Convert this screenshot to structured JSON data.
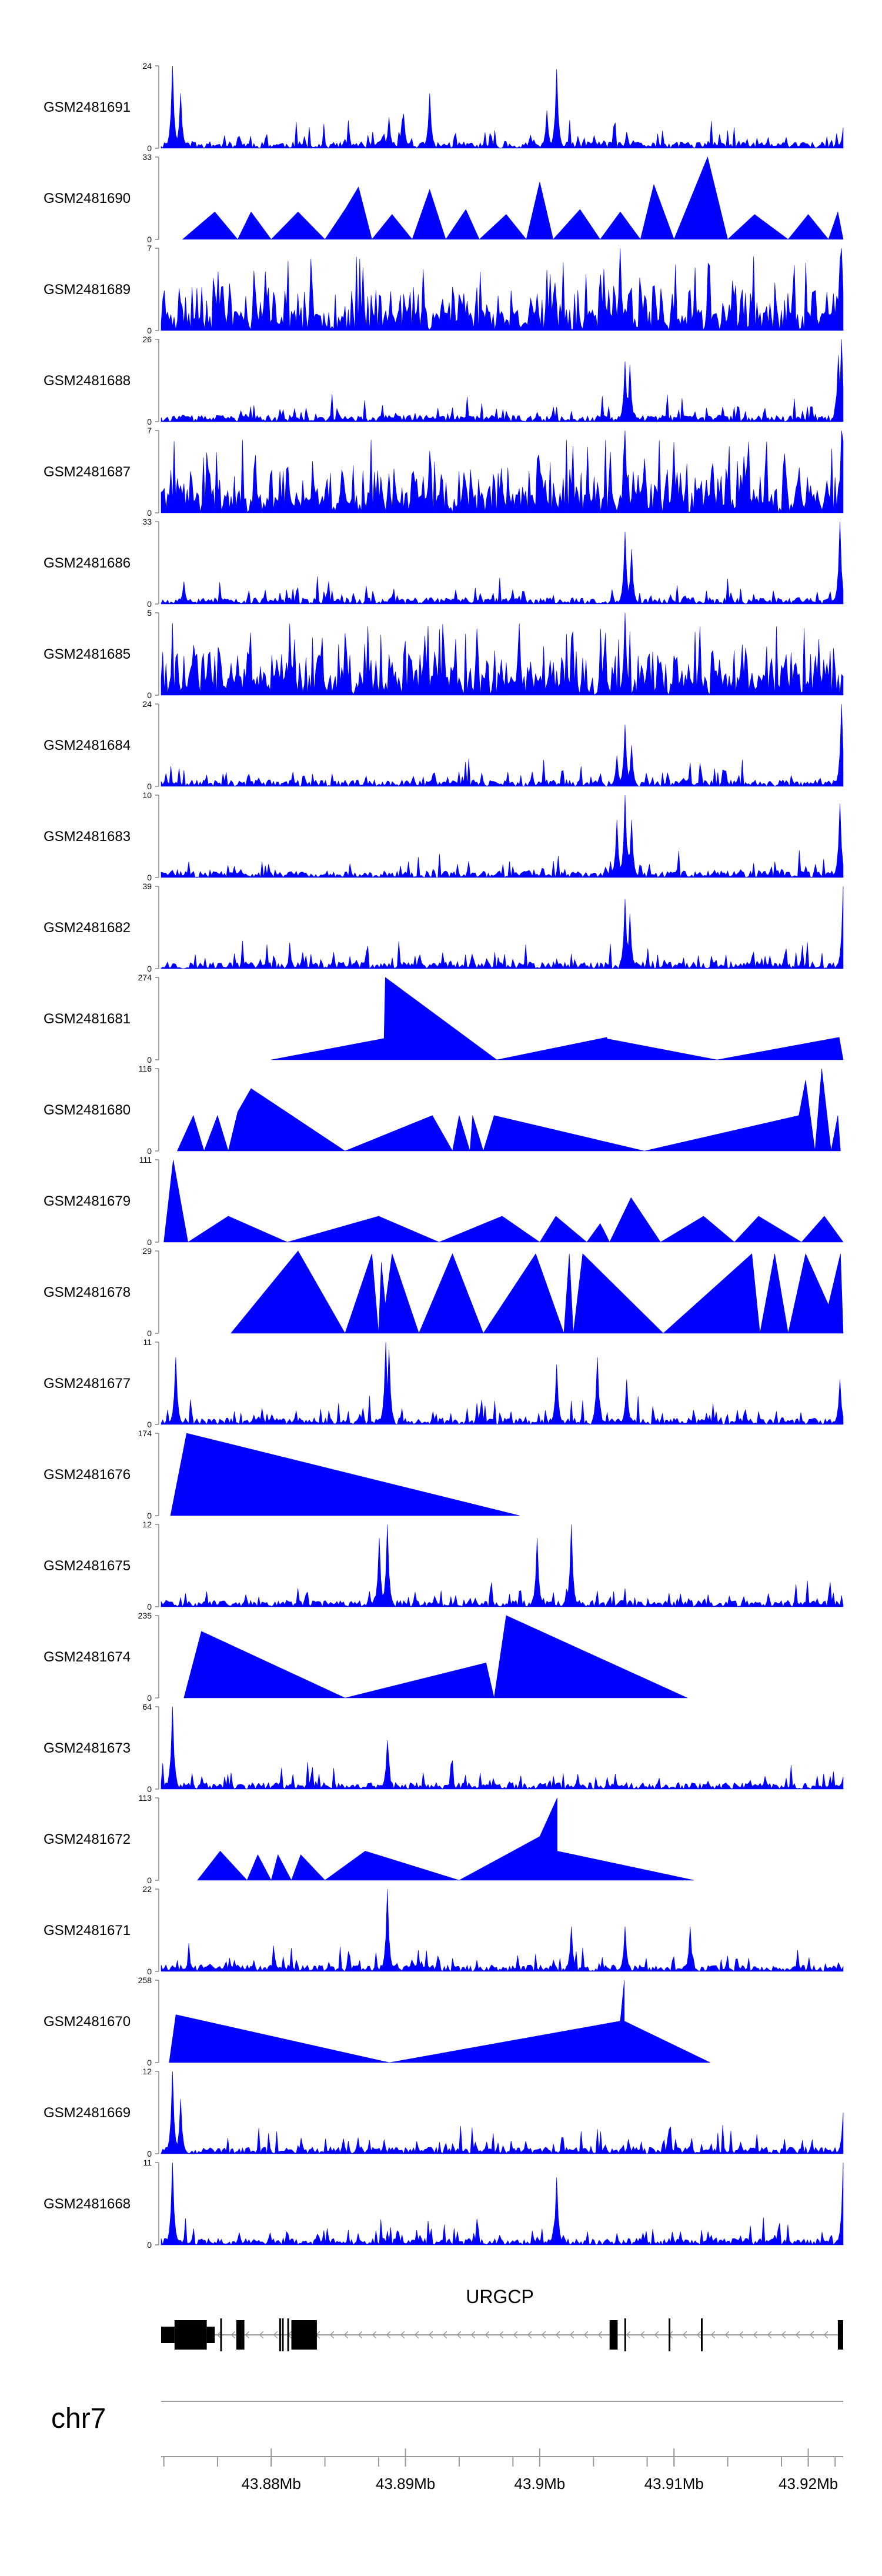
{
  "chart_data": {
    "type": "area",
    "title": "",
    "color": "#0000ff",
    "chromosome": "chr7",
    "gene": "URGCP",
    "axis": {
      "start": 43.8718,
      "end": 43.9226,
      "tick_labels": [
        "43.88Mb",
        "43.89Mb",
        "43.9Mb",
        "43.91Mb",
        "43.92Mb"
      ],
      "tick_label_values": [
        43.88,
        43.89,
        43.9,
        43.91,
        43.92
      ],
      "minor_ticks": [
        43.872,
        43.876,
        43.88,
        43.884,
        43.888,
        43.89,
        43.894,
        43.898,
        43.9,
        43.904,
        43.908,
        43.91,
        43.914,
        43.918,
        43.92,
        43.922
      ]
    },
    "tracks": [
      {
        "name": "GSM2481691",
        "ymax": "24",
        "max": 24,
        "kind": "dense",
        "seed": 11,
        "peaks": [
          [
            43.8727,
            24
          ],
          [
            43.8732,
            16
          ],
          [
            43.8888,
            9
          ],
          [
            43.8899,
            10
          ],
          [
            43.8898,
            8
          ],
          [
            43.8918,
            16
          ],
          [
            43.9005,
            11
          ],
          [
            43.9013,
            23
          ],
          [
            43.9013,
            14
          ],
          [
            43.9226,
            6
          ]
        ]
      },
      {
        "name": "GSM2481690",
        "ymax": "33",
        "max": 33,
        "kind": "tri",
        "pts": [
          [
            43.8734,
            0
          ],
          [
            43.8758,
            11
          ],
          [
            43.8775,
            0
          ],
          [
            43.8785,
            11
          ],
          [
            43.88,
            0
          ],
          [
            43.882,
            11
          ],
          [
            43.884,
            0
          ],
          [
            43.8855,
            12
          ],
          [
            43.8865,
            21
          ],
          [
            43.8875,
            0
          ],
          [
            43.889,
            10
          ],
          [
            43.8905,
            0
          ],
          [
            43.8918,
            20
          ],
          [
            43.893,
            0
          ],
          [
            43.8945,
            12
          ],
          [
            43.8955,
            0
          ],
          [
            43.8975,
            10
          ],
          [
            43.899,
            0
          ],
          [
            43.9,
            23
          ],
          [
            43.901,
            0
          ],
          [
            43.903,
            12
          ],
          [
            43.9045,
            0
          ],
          [
            43.906,
            11
          ],
          [
            43.9075,
            0
          ],
          [
            43.9085,
            22
          ],
          [
            43.91,
            0
          ],
          [
            43.9125,
            33
          ],
          [
            43.914,
            0
          ],
          [
            43.916,
            10
          ],
          [
            43.9185,
            0
          ],
          [
            43.92,
            10
          ],
          [
            43.9215,
            0
          ],
          [
            43.9222,
            11
          ],
          [
            43.9226,
            0
          ]
        ]
      },
      {
        "name": "GSM2481689",
        "ymax": "7",
        "max": 7,
        "kind": "spiky",
        "seed": 23,
        "peaks": [
          [
            43.876,
            5
          ],
          [
            43.8795,
            5
          ],
          [
            43.906,
            7
          ],
          [
            43.9225,
            7
          ]
        ]
      },
      {
        "name": "GSM2481688",
        "ymax": "26",
        "max": 26,
        "kind": "dense",
        "seed": 37,
        "peaks": [
          [
            43.9063,
            19
          ],
          [
            43.9067,
            18
          ],
          [
            43.9222,
            21
          ],
          [
            43.9225,
            26
          ]
        ]
      },
      {
        "name": "GSM2481687",
        "ymax": "7",
        "max": 7,
        "kind": "spiky",
        "seed": 41,
        "peaks": [
          [
            43.9063,
            7
          ],
          [
            43.9225,
            7
          ]
        ]
      },
      {
        "name": "GSM2481686",
        "ymax": "33",
        "max": 33,
        "kind": "dense",
        "seed": 53,
        "peaks": [
          [
            43.8735,
            9
          ],
          [
            43.9063,
            29
          ],
          [
            43.9068,
            22
          ],
          [
            43.9224,
            33
          ]
        ]
      },
      {
        "name": "GSM2481685",
        "ymax": "5",
        "max": 5,
        "kind": "spiky",
        "seed": 61,
        "peaks": [
          [
            43.9063,
            5
          ]
        ]
      },
      {
        "name": "GSM2481684",
        "ymax": "24",
        "max": 24,
        "kind": "dense",
        "seed": 71,
        "peaks": [
          [
            43.9063,
            18
          ],
          [
            43.9068,
            12
          ],
          [
            43.9058,
            9
          ],
          [
            43.9225,
            24
          ]
        ]
      },
      {
        "name": "GSM2481683",
        "ymax": "10",
        "max": 10,
        "kind": "dense",
        "seed": 83,
        "peaks": [
          [
            43.9063,
            10
          ],
          [
            43.9058,
            7
          ],
          [
            43.9068,
            7
          ],
          [
            43.9224,
            9
          ]
        ]
      },
      {
        "name": "GSM2481682",
        "ymax": "39",
        "max": 39,
        "kind": "dense",
        "seed": 97,
        "peaks": [
          [
            43.9063,
            33
          ],
          [
            43.9067,
            26
          ],
          [
            43.9226,
            39
          ]
        ]
      },
      {
        "name": "GSM2481681",
        "ymax": "274",
        "max": 274,
        "kind": "tri",
        "pts": [
          [
            43.88,
            0
          ],
          [
            43.8884,
            71
          ],
          [
            43.8885,
            274
          ],
          [
            43.8968,
            0
          ],
          [
            43.905,
            75
          ],
          [
            43.905,
            70
          ],
          [
            43.9132,
            0
          ],
          [
            43.9223,
            75
          ],
          [
            43.9226,
            0
          ]
        ]
      },
      {
        "name": "GSM2481680",
        "ymax": "116",
        "max": 116,
        "kind": "tri",
        "pts": [
          [
            43.873,
            0
          ],
          [
            43.8742,
            50
          ],
          [
            43.875,
            0
          ],
          [
            43.876,
            50
          ],
          [
            43.8768,
            0
          ],
          [
            43.8775,
            55
          ],
          [
            43.8785,
            88
          ],
          [
            43.8855,
            0
          ],
          [
            43.892,
            50
          ],
          [
            43.8935,
            0
          ],
          [
            43.894,
            50
          ],
          [
            43.8948,
            0
          ],
          [
            43.895,
            50
          ],
          [
            43.8958,
            0
          ],
          [
            43.8966,
            50
          ],
          [
            43.9078,
            0
          ],
          [
            43.9193,
            50
          ],
          [
            43.9198,
            100
          ],
          [
            43.9205,
            0
          ],
          [
            43.921,
            116
          ],
          [
            43.9217,
            0
          ],
          [
            43.9222,
            50
          ],
          [
            43.9224,
            0
          ]
        ]
      },
      {
        "name": "GSM2481679",
        "ymax": "111",
        "max": 111,
        "kind": "tri",
        "pts": [
          [
            43.872,
            0
          ],
          [
            43.8727,
            111
          ],
          [
            43.8738,
            0
          ],
          [
            43.8768,
            35
          ],
          [
            43.8812,
            0
          ],
          [
            43.888,
            35
          ],
          [
            43.8925,
            0
          ],
          [
            43.8972,
            35
          ],
          [
            43.9,
            0
          ],
          [
            43.9012,
            35
          ],
          [
            43.9035,
            0
          ],
          [
            43.9045,
            25
          ],
          [
            43.9048,
            15
          ],
          [
            43.9052,
            0
          ],
          [
            43.9068,
            60
          ],
          [
            43.909,
            0
          ],
          [
            43.9122,
            35
          ],
          [
            43.9145,
            0
          ],
          [
            43.9163,
            35
          ],
          [
            43.9195,
            0
          ],
          [
            43.9212,
            35
          ],
          [
            43.9226,
            0
          ]
        ]
      },
      {
        "name": "GSM2481678",
        "ymax": "29",
        "max": 29,
        "kind": "tri",
        "pts": [
          [
            43.877,
            0
          ],
          [
            43.882,
            29
          ],
          [
            43.8855,
            0
          ],
          [
            43.8875,
            28
          ],
          [
            43.888,
            0
          ],
          [
            43.8882,
            25
          ],
          [
            43.8885,
            10
          ],
          [
            43.889,
            28
          ],
          [
            43.891,
            0
          ],
          [
            43.8935,
            28
          ],
          [
            43.8958,
            0
          ],
          [
            43.8997,
            28
          ],
          [
            43.9018,
            0
          ],
          [
            43.9022,
            28
          ],
          [
            43.9025,
            0
          ],
          [
            43.9032,
            28
          ],
          [
            43.9092,
            0
          ],
          [
            43.9158,
            28
          ],
          [
            43.9164,
            0
          ],
          [
            43.9175,
            28
          ],
          [
            43.9185,
            0
          ],
          [
            43.9198,
            28
          ],
          [
            43.9215,
            10
          ],
          [
            43.9224,
            28
          ],
          [
            43.9226,
            0
          ]
        ]
      },
      {
        "name": "GSM2481677",
        "ymax": "11",
        "max": 11,
        "kind": "dense",
        "seed": 109,
        "peaks": [
          [
            43.8729,
            9
          ],
          [
            43.8885,
            11
          ],
          [
            43.8888,
            10
          ],
          [
            43.9013,
            8
          ],
          [
            43.9043,
            9
          ],
          [
            43.9065,
            6
          ],
          [
            43.9224,
            6
          ]
        ]
      },
      {
        "name": "GSM2481676",
        "ymax": "174",
        "max": 174,
        "kind": "tri",
        "pts": [
          [
            43.8725,
            0
          ],
          [
            43.8737,
            174
          ],
          [
            43.8985,
            0
          ]
        ]
      },
      {
        "name": "GSM2481675",
        "ymax": "12",
        "max": 12,
        "kind": "dense",
        "seed": 127,
        "peaks": [
          [
            43.888,
            10
          ],
          [
            43.8886,
            12
          ],
          [
            43.8998,
            10
          ],
          [
            43.9023,
            12
          ]
        ]
      },
      {
        "name": "GSM2481674",
        "ymax": "235",
        "max": 235,
        "kind": "tri",
        "pts": [
          [
            43.8735,
            0
          ],
          [
            43.8748,
            190
          ],
          [
            43.8855,
            0
          ],
          [
            43.896,
            100
          ],
          [
            43.8966,
            0
          ],
          [
            43.8975,
            235
          ],
          [
            43.911,
            0
          ]
        ]
      },
      {
        "name": "GSM2481673",
        "ymax": "64",
        "max": 64,
        "kind": "dense",
        "seed": 139,
        "peaks": [
          [
            43.8727,
            64
          ],
          [
            43.8886,
            38
          ],
          [
            43.9226,
            8
          ]
        ]
      },
      {
        "name": "GSM2481672",
        "ymax": "113",
        "max": 113,
        "kind": "tri",
        "pts": [
          [
            43.8745,
            0
          ],
          [
            43.8762,
            40
          ],
          [
            43.8782,
            0
          ],
          [
            43.879,
            35
          ],
          [
            43.88,
            0
          ],
          [
            43.8805,
            35
          ],
          [
            43.8815,
            0
          ],
          [
            43.8822,
            35
          ],
          [
            43.884,
            0
          ],
          [
            43.887,
            40
          ],
          [
            43.894,
            0
          ],
          [
            43.9,
            60
          ],
          [
            43.9013,
            113
          ],
          [
            43.9013,
            40
          ],
          [
            43.9115,
            0
          ]
        ]
      },
      {
        "name": "GSM2481671",
        "ymax": "22",
        "max": 22,
        "kind": "dense",
        "seed": 151,
        "peaks": [
          [
            43.8886,
            22
          ],
          [
            43.9023,
            12
          ],
          [
            43.9063,
            12
          ],
          [
            43.9112,
            12
          ]
        ]
      },
      {
        "name": "GSM2481670",
        "ymax": "258",
        "max": 258,
        "kind": "tri",
        "pts": [
          [
            43.8724,
            0
          ],
          [
            43.8729,
            150
          ],
          [
            43.8888,
            0
          ],
          [
            43.906,
            130
          ],
          [
            43.9063,
            258
          ],
          [
            43.9063,
            130
          ],
          [
            43.9127,
            0
          ]
        ]
      },
      {
        "name": "GSM2481669",
        "ymax": "12",
        "max": 12,
        "kind": "dense",
        "seed": 163,
        "peaks": [
          [
            43.8727,
            12
          ],
          [
            43.8733,
            8
          ],
          [
            43.9226,
            6
          ]
        ]
      },
      {
        "name": "GSM2481668",
        "ymax": "11",
        "max": 11,
        "kind": "dense",
        "seed": 173,
        "peaks": [
          [
            43.8727,
            11
          ],
          [
            43.9013,
            9
          ],
          [
            43.9226,
            11
          ]
        ]
      }
    ],
    "gene_model": {
      "line_start": 43.8718,
      "line_end": 43.9226,
      "exons": [
        [
          43.8718,
          43.8728,
          "thin"
        ],
        [
          43.8728,
          43.8752,
          "thick"
        ],
        [
          43.8752,
          43.8758,
          "thin"
        ],
        [
          43.8762,
          43.8764,
          "line"
        ],
        [
          43.8774,
          43.878,
          "thick"
        ],
        [
          43.8806,
          43.8808,
          "line"
        ],
        [
          43.8808,
          43.881,
          "line"
        ],
        [
          43.8812,
          43.8815,
          "line"
        ],
        [
          43.8815,
          43.8834,
          "thick"
        ],
        [
          43.9052,
          43.9058,
          "thick"
        ],
        [
          43.9063,
          43.9065,
          "line"
        ],
        [
          43.9096,
          43.9098,
          "line"
        ],
        [
          43.912,
          43.9122,
          "line"
        ],
        [
          43.9222,
          43.9226,
          "thick"
        ]
      ]
    }
  }
}
